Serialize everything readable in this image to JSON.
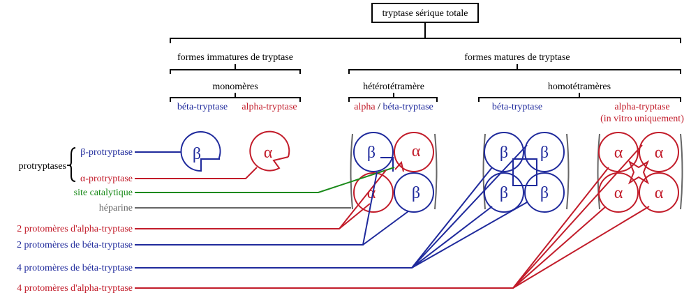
{
  "title": "tryptase sérique totale",
  "level1": {
    "immature": "formes immatures de tryptase",
    "mature": "formes matures de tryptase"
  },
  "level2": {
    "monomers": "monomères",
    "hetero": "hétérotétramère",
    "homo": "homotétramères"
  },
  "level3": {
    "mono_beta": "béta-tryptase",
    "mono_alpha": "alpha-tryptase",
    "hetero_alpha": "alpha",
    "hetero_sep": " / ",
    "hetero_beta": "béta-tryptase",
    "homo_beta": "béta-tryptase",
    "homo_alpha": "alpha-tryptase",
    "homo_alpha_note": "(in vitro uniquement)"
  },
  "symbols": {
    "alpha": "α",
    "beta": "β"
  },
  "legend": {
    "group": "protryptases",
    "beta_pro": "β-protryptase",
    "alpha_pro": "α-protryptase",
    "catalytic": "site catalytique",
    "heparin": "héparine",
    "two_alpha": "2 protomères d'alpha-tryptase",
    "two_beta": "2 protomères de béta-tryptase",
    "four_beta": "4 protomères de béta-tryptase",
    "four_alpha": "4 protomères d'alpha-tryptase"
  },
  "colors": {
    "beta": "#1f2a9c",
    "alpha": "#c21c2a",
    "catalytic": "#1a8a1a",
    "heparin": "#666666",
    "site_marker": "#3fb6ea"
  }
}
